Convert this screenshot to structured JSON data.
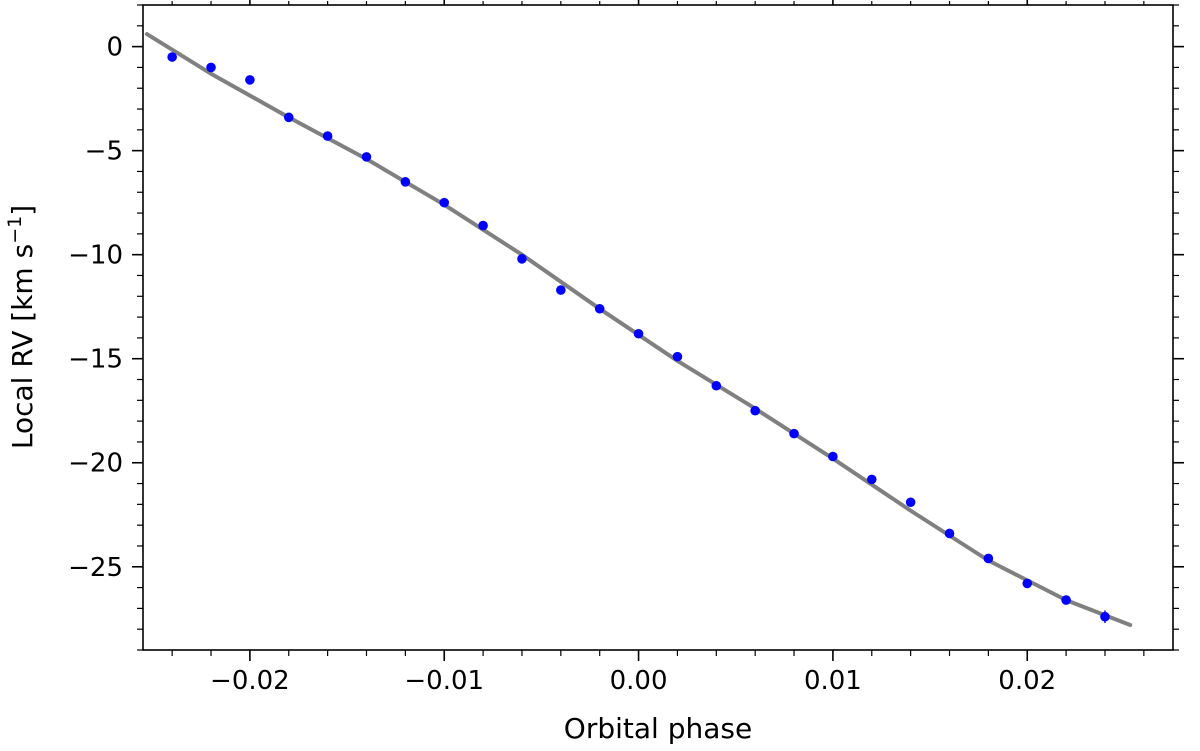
{
  "chart_data": {
    "type": "scatter",
    "xlabel": "Orbital phase",
    "ylabel_main": "Local RV [km s",
    "ylabel_sup": "−1",
    "ylabel_close": "]",
    "xlim": [
      -0.0255,
      0.0275
    ],
    "ylim": [
      -29.0,
      2.0
    ],
    "x_ticks": [
      -0.02,
      -0.01,
      0.0,
      0.01,
      0.02
    ],
    "x_tick_labels": [
      "−0.02",
      "−0.01",
      "0.00",
      "0.01",
      "0.02"
    ],
    "y_ticks": [
      0,
      -5,
      -10,
      -15,
      -20,
      -25
    ],
    "y_tick_labels": [
      "0",
      "−5",
      "−10",
      "−15",
      "−20",
      "−25"
    ],
    "x_minor_step": 0.002,
    "y_minor_step": 1,
    "grid": false,
    "legend": "none",
    "series": [
      {
        "kind": "points",
        "color": "#0000ff",
        "x": [
          -0.024,
          -0.022,
          -0.02,
          -0.018,
          -0.016,
          -0.014,
          -0.012,
          -0.01,
          -0.008,
          -0.006,
          -0.004,
          -0.002,
          0.0,
          0.002,
          0.004,
          0.006,
          0.008,
          0.01,
          0.012,
          0.014,
          0.016,
          0.018,
          0.02,
          0.022,
          0.024
        ],
        "y": [
          -0.5,
          -1.0,
          -1.6,
          -3.4,
          -4.3,
          -5.3,
          -6.5,
          -7.5,
          -8.6,
          -10.2,
          -11.7,
          -12.6,
          -13.8,
          -14.9,
          -16.3,
          -17.5,
          -18.6,
          -19.7,
          -20.8,
          -21.9,
          -23.4,
          -24.6,
          -25.8,
          -26.6,
          -27.4
        ]
      },
      {
        "kind": "line",
        "color": "#808080",
        "x": [
          -0.0253,
          -0.022,
          -0.018,
          -0.014,
          -0.01,
          -0.006,
          -0.002,
          0.002,
          0.006,
          0.01,
          0.014,
          0.018,
          0.022,
          0.0253
        ],
        "y": [
          0.6,
          -1.3,
          -3.4,
          -5.4,
          -7.6,
          -10.0,
          -12.6,
          -15.1,
          -17.4,
          -19.8,
          -22.3,
          -24.7,
          -26.6,
          -27.8
        ]
      }
    ],
    "error_bars": [
      {
        "x": 0.024,
        "y": -27.4,
        "err": 0.3
      }
    ]
  }
}
